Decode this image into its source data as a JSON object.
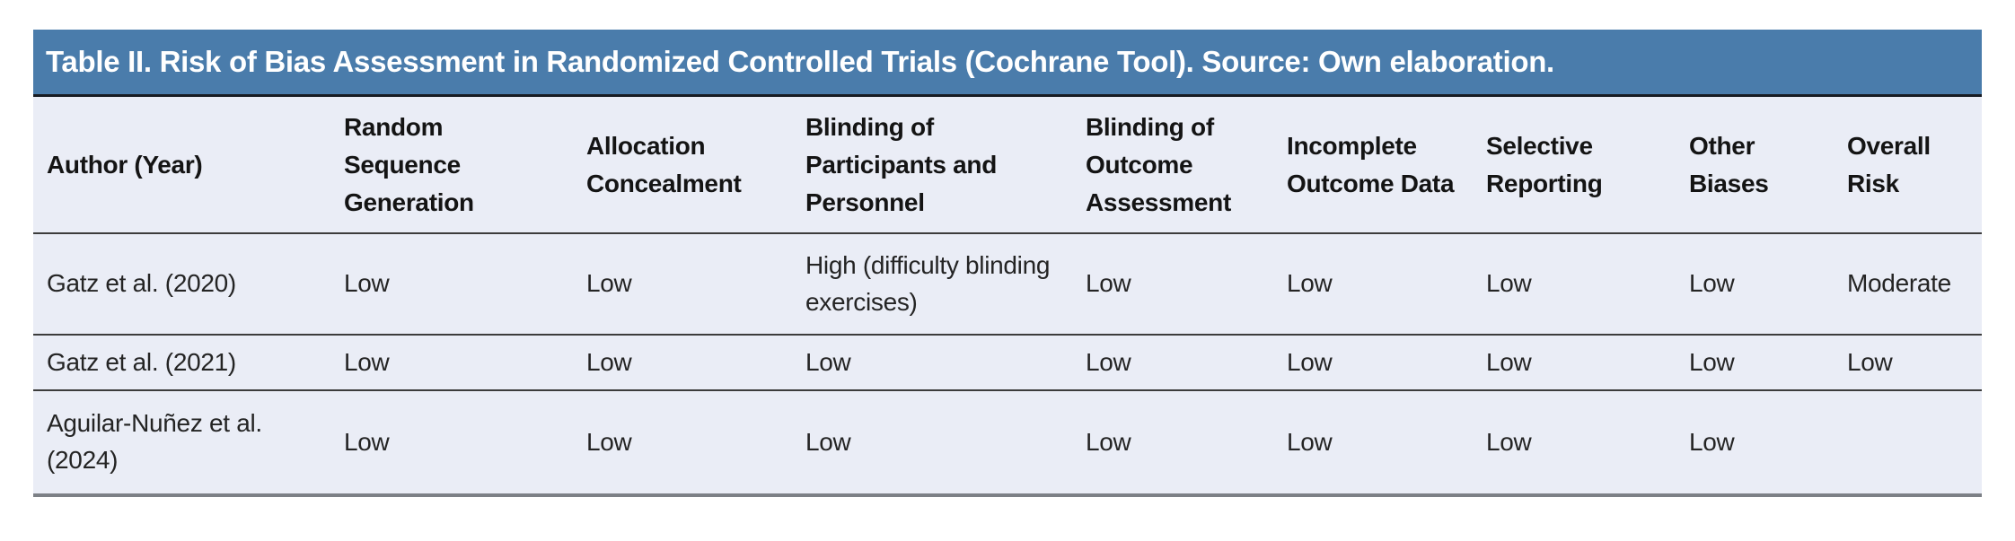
{
  "table": {
    "title": "Table II. Risk of Bias Assessment in Randomized Controlled Trials (Cochrane Tool). Source: Own elaboration.",
    "columns": [
      "Author (Year)",
      "Random Sequence Generation",
      "Allocation Concealment",
      "Blinding of Participants and Personnel",
      "Blinding of Outcome Assessment",
      "Incomplete Outcome Data",
      "Selective Reporting",
      "Other Biases",
      "Overall Risk"
    ],
    "rows": [
      [
        "Gatz et al. (2020)",
        "Low",
        "Low",
        "High (difficulty blinding exercises)",
        "Low",
        "Low",
        "Low",
        "Low",
        "Moderate"
      ],
      [
        "Gatz et al. (2021)",
        "Low",
        "Low",
        "Low",
        "Low",
        "Low",
        "Low",
        "Low",
        "Low"
      ],
      [
        "Aguilar-Nuñez et al. (2024)",
        "Low",
        "Low",
        "Low",
        "Low",
        "Low",
        "Low",
        "Low",
        ""
      ]
    ],
    "colors": {
      "title_bar_background": "#4a7cab",
      "title_text": "#ffffff",
      "table_background": "#eaedf6",
      "header_text": "#141414",
      "body_text": "#242424",
      "divider_dark": "#3c3c3c",
      "title_underline": "#171b22",
      "bottom_border": "#7c8086",
      "page_background": "#ffffff"
    }
  }
}
